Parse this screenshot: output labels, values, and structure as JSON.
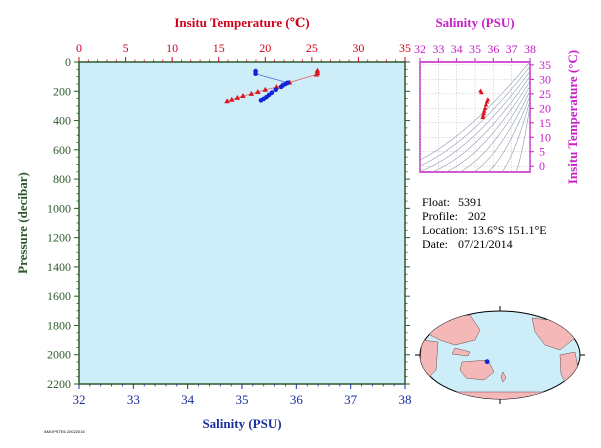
{
  "chart_data": [
    {
      "type": "scatter",
      "title_top": "Insitu Temperature (℃)",
      "xlabel_bottom": "Salinity (PSU)",
      "ylabel": "Pressure (decibar)",
      "x_top_ticks": [
        "0",
        "5",
        "10",
        "15",
        "20",
        "25",
        "30",
        "35"
      ],
      "x_top_lim": [
        0,
        35
      ],
      "x_bottom_ticks": [
        "32",
        "33",
        "34",
        "35",
        "36",
        "37",
        "38"
      ],
      "x_bottom_lim": [
        32,
        38
      ],
      "y_ticks": [
        "0",
        "200",
        "400",
        "600",
        "800",
        "1000",
        "1200",
        "1400",
        "1600",
        "1800",
        "2000",
        "2200"
      ],
      "y_lim": [
        0,
        2200
      ],
      "y_inverted": true,
      "plot_bg": "#cdeef8",
      "series": [
        {
          "kind": "temperature",
          "marker": "triangle",
          "color": "#e0141e",
          "points": [
            [
              25.6,
              60
            ],
            [
              25.6,
              75
            ],
            [
              25.5,
              85
            ],
            [
              22.6,
              140
            ],
            [
              21.8,
              158
            ],
            [
              21.2,
              172
            ],
            [
              20.0,
              190
            ],
            [
              19.2,
              205
            ],
            [
              18.5,
              218
            ],
            [
              17.6,
              232
            ],
            [
              17.0,
              245
            ],
            [
              16.4,
              258
            ],
            [
              15.9,
              268
            ]
          ]
        },
        {
          "kind": "salinity",
          "marker": "circle",
          "color": "#1024d8",
          "points": [
            [
              35.25,
              62
            ],
            [
              35.25,
              80
            ],
            [
              35.84,
              142
            ],
            [
              35.8,
              150
            ],
            [
              35.75,
              160
            ],
            [
              35.72,
              170
            ],
            [
              35.62,
              190
            ],
            [
              35.55,
              210
            ],
            [
              35.5,
              225
            ],
            [
              35.45,
              240
            ],
            [
              35.4,
              252
            ],
            [
              35.35,
              262
            ]
          ]
        }
      ]
    },
    {
      "type": "scatter",
      "title": "Salinity (PSU)",
      "ylabel": "Insitu Temperature (°C)",
      "x_ticks": [
        "32",
        "33",
        "34",
        "35",
        "36",
        "37",
        "38"
      ],
      "x_lim": [
        32,
        38
      ],
      "y_ticks": [
        "0",
        "5",
        "10",
        "15",
        "20",
        "25",
        "30",
        "35"
      ],
      "y_lim": [
        -2,
        36
      ],
      "points": [
        [
          35.3,
          26.0
        ],
        [
          35.35,
          25.4
        ],
        [
          35.7,
          23.0
        ],
        [
          35.65,
          22.2
        ],
        [
          35.6,
          21.2
        ],
        [
          35.55,
          20.0
        ],
        [
          35.5,
          19.0
        ],
        [
          35.48,
          18.2
        ],
        [
          35.44,
          17.4
        ],
        [
          35.42,
          16.8
        ]
      ]
    }
  ],
  "info": {
    "float_label": "Float:",
    "float_value": "5391",
    "profile_label": "Profile:",
    "profile_value": "202",
    "location_label": "Location:",
    "location_value": "13.6°S  151.1°E",
    "date_label": "Date:",
    "date_value": "07/21/2014"
  },
  "map": {
    "float_lat": -13.6,
    "float_lon": 151.1,
    "ocean_color": "#cdeef8",
    "land_color": "#f5b8b8",
    "marker_color": "#1024d8"
  },
  "footer_small": "AMOPSTE6 20022016"
}
